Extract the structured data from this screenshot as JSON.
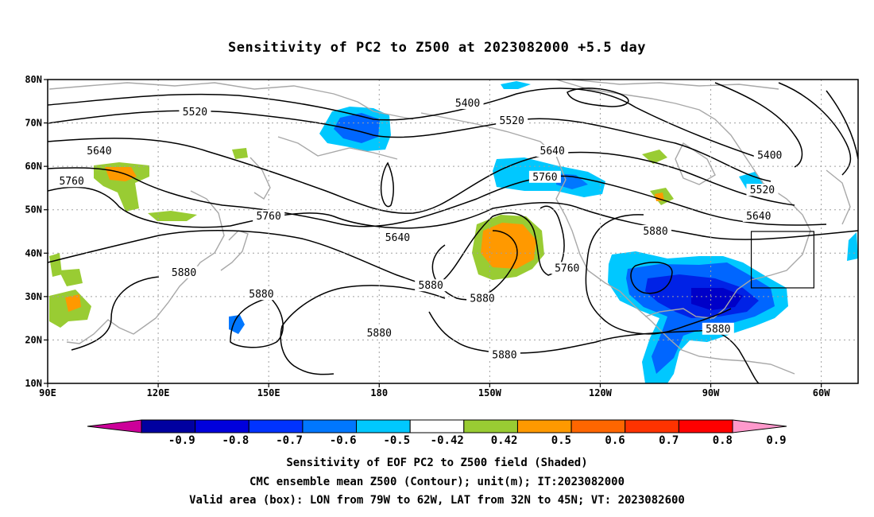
{
  "title": "Sensitivity of PC2 to Z500 at 2023082000 +5.5 day",
  "map": {
    "lon_range": [
      90,
      310
    ],
    "lat_range": [
      10,
      80
    ],
    "lat_ticks": [
      {
        "value": 80,
        "label": "80N"
      },
      {
        "value": 70,
        "label": "70N"
      },
      {
        "value": 60,
        "label": "60N"
      },
      {
        "value": 50,
        "label": "50N"
      },
      {
        "value": 40,
        "label": "40N"
      },
      {
        "value": 30,
        "label": "30N"
      },
      {
        "value": 20,
        "label": "20N"
      },
      {
        "value": 10,
        "label": "10N"
      }
    ],
    "lon_ticks": [
      {
        "value": 90,
        "label": "90E"
      },
      {
        "value": 120,
        "label": "120E"
      },
      {
        "value": 150,
        "label": "150E"
      },
      {
        "value": 180,
        "label": "180"
      },
      {
        "value": 210,
        "label": "150W"
      },
      {
        "value": 240,
        "label": "120W"
      },
      {
        "value": 270,
        "label": "90W"
      },
      {
        "value": 300,
        "label": "60W"
      }
    ],
    "grid": "dotted",
    "valid_box": {
      "lon": [
        281,
        298
      ],
      "lat": [
        32,
        45
      ]
    },
    "contour_labels": [
      {
        "text": "5520",
        "lon": 130,
        "lat": 72.5
      },
      {
        "text": "5400",
        "lon": 204,
        "lat": 74.5
      },
      {
        "text": "5520",
        "lon": 216,
        "lat": 70.5
      },
      {
        "text": "5640",
        "lon": 104,
        "lat": 63.5
      },
      {
        "text": "5640",
        "lon": 227,
        "lat": 63.5
      },
      {
        "text": "5400",
        "lon": 286,
        "lat": 62.5
      },
      {
        "text": "5760",
        "lon": 96.5,
        "lat": 56.5
      },
      {
        "text": "5760",
        "lon": 225,
        "lat": 57.5
      },
      {
        "text": "5520",
        "lon": 284,
        "lat": 54.5
      },
      {
        "text": "5760",
        "lon": 150,
        "lat": 48.5
      },
      {
        "text": "5640",
        "lon": 283,
        "lat": 48.5
      },
      {
        "text": "5640",
        "lon": 185,
        "lat": 43.5
      },
      {
        "text": "5880",
        "lon": 255,
        "lat": 45
      },
      {
        "text": "5880",
        "lon": 127,
        "lat": 35.5
      },
      {
        "text": "5760",
        "lon": 231,
        "lat": 36.5
      },
      {
        "text": "5880",
        "lon": 194,
        "lat": 32.5
      },
      {
        "text": "5880",
        "lon": 148,
        "lat": 30.5
      },
      {
        "text": "5880",
        "lon": 208,
        "lat": 29.5
      },
      {
        "text": "5880",
        "lon": 272,
        "lat": 22.5
      },
      {
        "text": "5880",
        "lon": 180,
        "lat": 21.5
      },
      {
        "text": "5880",
        "lon": 214,
        "lat": 16.5
      }
    ]
  },
  "colorbar": {
    "labels": [
      "-0.9",
      "-0.8",
      "-0.7",
      "-0.6",
      "-0.5",
      "-0.42",
      "0.42",
      "0.5",
      "0.6",
      "0.7",
      "0.8",
      "0.9"
    ],
    "colors": [
      "#cc0099",
      "#0000a0",
      "#0000dc",
      "#0033ff",
      "#0077ff",
      "#00c8ff",
      "#ffffff",
      "#99cc33",
      "#ff9900",
      "#ff6600",
      "#ff3300",
      "#ff0000",
      "#ff99cc"
    ]
  },
  "footer": {
    "line1": "Sensitivity of EOF PC2 to Z500 field (Shaded)",
    "line2": "CMC ensemble mean Z500 (Contour); unit(m); IT:2023082000",
    "line3": "Valid area (box): LON from 79W to 62W, LAT from 32N to 45N; VT: 2023082600"
  }
}
